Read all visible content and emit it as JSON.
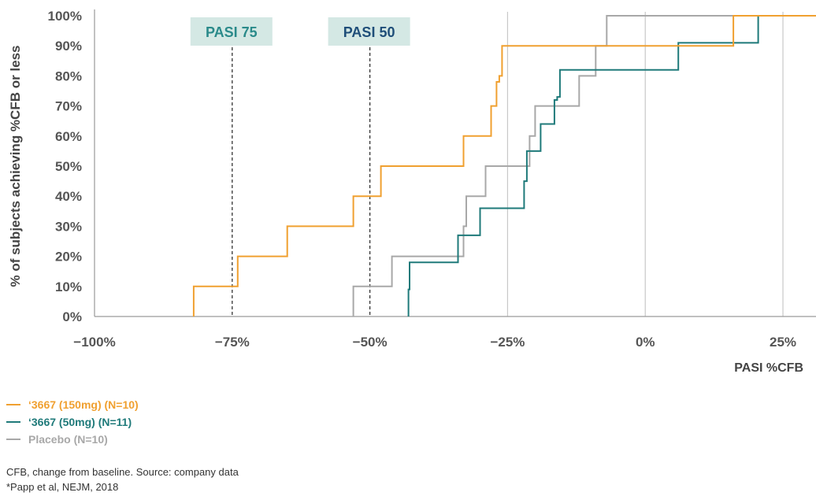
{
  "chart_data": {
    "type": "line",
    "step": true,
    "xlabel": "PASI %CFB",
    "ylabel": "% of subjects achieving %CFB or less",
    "xlim": [
      -100,
      31
    ],
    "ylim": [
      0,
      100
    ],
    "x_ticks": [
      -100,
      -75,
      -50,
      -25,
      0,
      25
    ],
    "x_tick_labels": [
      "−100%",
      "−75%",
      "−50%",
      "−25%",
      "0%",
      "25%"
    ],
    "y_ticks": [
      0,
      10,
      20,
      30,
      40,
      50,
      60,
      70,
      80,
      90,
      100
    ],
    "y_tick_labels": [
      "0%",
      "10%",
      "20%",
      "30%",
      "40%",
      "50%",
      "60%",
      "70%",
      "80%",
      "90%",
      "100%"
    ],
    "vertical_gridlines": [
      -25,
      0,
      25
    ],
    "reference_lines": [
      {
        "x": -75,
        "label": "PASI 75",
        "label_color": "#2a8a8a"
      },
      {
        "x": -50,
        "label": "PASI 50",
        "label_color": "#1f4e79"
      }
    ],
    "series": [
      {
        "name": "‘3667 (150mg) (N=10)",
        "color": "#f0a030",
        "x": [
          -82,
          -82,
          -74,
          -74,
          -65,
          -65,
          -53,
          -53,
          -48,
          -48,
          -33,
          -33,
          -28,
          -28,
          -27,
          -27,
          -26.5,
          -26.5,
          -26,
          -26,
          16,
          16,
          31
        ],
        "y": [
          0,
          10,
          10,
          20,
          20,
          30,
          30,
          40,
          40,
          50,
          50,
          60,
          60,
          70,
          70,
          78,
          78,
          80,
          80,
          90,
          90,
          100,
          100
        ]
      },
      {
        "name": "‘3667 (50mg) (N=11)",
        "color": "#1f7a7a",
        "x": [
          -43,
          -43,
          -42.8,
          -42.8,
          -34,
          -34,
          -30,
          -30,
          -22,
          -22,
          -21.5,
          -21.5,
          -19,
          -19,
          -16.5,
          -16.5,
          -16,
          -16,
          -15.5,
          -15.5,
          6,
          6,
          20.5,
          20.5,
          31
        ],
        "y": [
          0,
          9,
          9,
          18,
          18,
          27,
          27,
          36,
          36,
          45,
          45,
          55,
          55,
          64,
          64,
          72,
          72,
          73,
          73,
          82,
          82,
          91,
          91,
          100,
          100
        ]
      },
      {
        "name": "Placebo (N=10)",
        "color": "#a8a8a8",
        "x": [
          -53,
          -53,
          -46,
          -46,
          -33,
          -33,
          -32.5,
          -32.5,
          -29,
          -29,
          -21,
          -21,
          -20,
          -20,
          -12,
          -12,
          -9,
          -9,
          -7,
          -7,
          31
        ],
        "y": [
          0,
          10,
          10,
          20,
          20,
          30,
          30,
          40,
          40,
          50,
          50,
          60,
          60,
          70,
          70,
          80,
          80,
          90,
          90,
          100,
          100
        ]
      }
    ]
  },
  "notes": {
    "line1": "CFB, change from baseline. Source: company data",
    "line2": "*Papp et al, NEJM, 2018"
  }
}
